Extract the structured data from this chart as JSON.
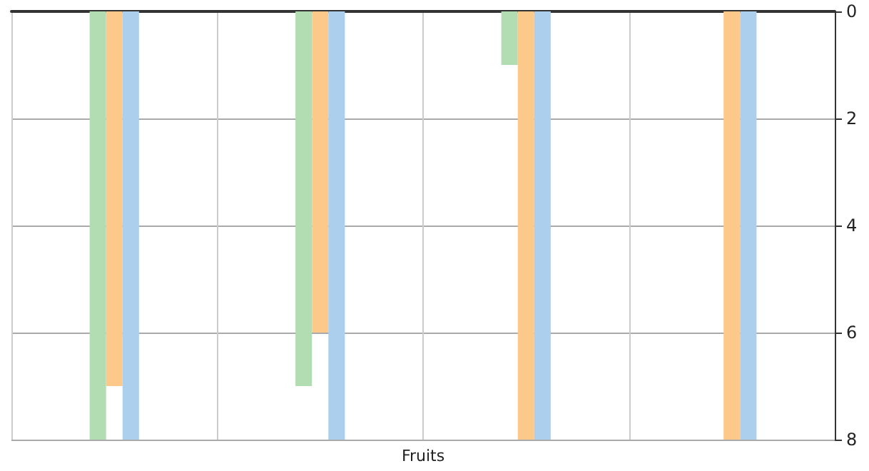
{
  "chart_data": {
    "type": "bar",
    "xlabel": "Fruits",
    "categories": [
      null,
      null,
      null,
      null
    ],
    "series": [
      {
        "color": "#b2dcb2",
        "values": [
          8,
          7,
          1,
          0
        ]
      },
      {
        "color": "#fdc98a",
        "values": [
          7,
          6,
          8,
          8
        ]
      },
      {
        "color": "#abcfed",
        "values": [
          8,
          8,
          8,
          8
        ]
      }
    ],
    "ylim": [
      8,
      0
    ],
    "yticks": [
      0,
      2,
      4,
      6,
      8
    ],
    "grid": true
  }
}
